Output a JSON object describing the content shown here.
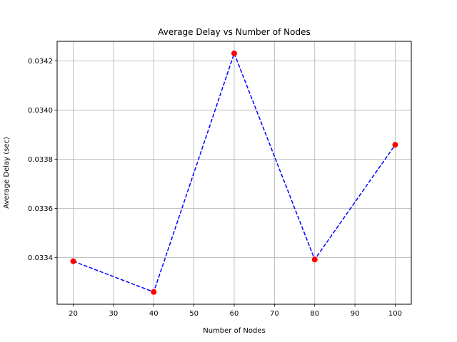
{
  "chart_data": {
    "type": "line",
    "title": "Average Delay vs Number of Nodes",
    "xlabel": "Number of Nodes",
    "ylabel": "Average Delay (sec)",
    "x": [
      20,
      40,
      60,
      80,
      100
    ],
    "y": [
      0.033385,
      0.03326,
      0.034231,
      0.033392,
      0.033859
    ],
    "xlim": [
      16,
      104
    ],
    "ylim": [
      0.03321,
      0.03428
    ],
    "xticks": [
      20,
      30,
      40,
      50,
      60,
      70,
      80,
      90,
      100
    ],
    "xtick_labels": [
      "20",
      "30",
      "40",
      "50",
      "60",
      "70",
      "80",
      "90",
      "100"
    ],
    "yticks": [
      0.0334,
      0.0336,
      0.0338,
      0.034,
      0.0342
    ],
    "ytick_labels": [
      "0.0334",
      "0.0336",
      "0.0338",
      "0.0340",
      "0.0342"
    ],
    "grid": true,
    "line_style": "dashed",
    "line_color": "#0000ff",
    "marker_color": "#ff0000"
  }
}
